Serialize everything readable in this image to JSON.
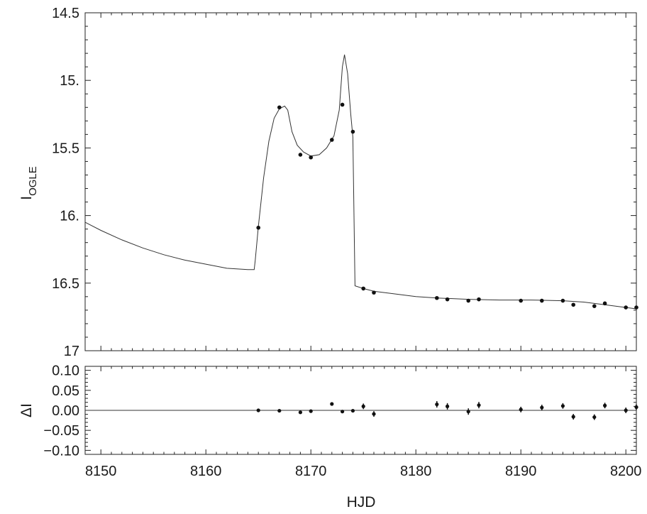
{
  "chart_data": [
    {
      "type": "scatter",
      "panel": "light-curve",
      "title": "",
      "xlabel": "",
      "ylabel": "I",
      "ylabel_sub": "OGLE",
      "xlim": [
        8148.5,
        8201
      ],
      "ylim": [
        17,
        14.5
      ],
      "y_inverted": true,
      "yticks": [
        14.5,
        15,
        15.5,
        16,
        16.5,
        17
      ],
      "ytick_labels": [
        "14.5",
        "15.",
        "15.5",
        "16.",
        "16.5",
        "17"
      ],
      "grid": false,
      "series": [
        {
          "points": [
            {
              "x": 8165.0,
              "y": 16.09
            },
            {
              "x": 8167.0,
              "y": 15.2
            },
            {
              "x": 8169.0,
              "y": 15.55
            },
            {
              "x": 8170.0,
              "y": 15.57
            },
            {
              "x": 8172.0,
              "y": 15.44
            },
            {
              "x": 8173.0,
              "y": 15.18
            },
            {
              "x": 8174.0,
              "y": 15.38
            },
            {
              "x": 8175.0,
              "y": 16.54
            },
            {
              "x": 8176.0,
              "y": 16.57
            },
            {
              "x": 8182.0,
              "y": 16.61
            },
            {
              "x": 8183.0,
              "y": 16.62
            },
            {
              "x": 8185.0,
              "y": 16.63
            },
            {
              "x": 8186.0,
              "y": 16.62
            },
            {
              "x": 8190.0,
              "y": 16.63
            },
            {
              "x": 8192.0,
              "y": 16.63
            },
            {
              "x": 8194.0,
              "y": 16.63
            },
            {
              "x": 8195.0,
              "y": 16.66
            },
            {
              "x": 8197.0,
              "y": 16.67
            },
            {
              "x": 8198.0,
              "y": 16.65
            },
            {
              "x": 8200.0,
              "y": 16.68
            },
            {
              "x": 8201.0,
              "y": 16.68
            }
          ]
        },
        {
          "type": "line",
          "points": [
            {
              "x": 8148.5,
              "y": 16.05
            },
            {
              "x": 8150,
              "y": 16.11
            },
            {
              "x": 8152,
              "y": 16.18
            },
            {
              "x": 8154,
              "y": 16.24
            },
            {
              "x": 8156,
              "y": 16.29
            },
            {
              "x": 8158,
              "y": 16.33
            },
            {
              "x": 8160,
              "y": 16.36
            },
            {
              "x": 8162,
              "y": 16.39
            },
            {
              "x": 8164,
              "y": 16.4
            },
            {
              "x": 8164.6,
              "y": 16.4
            },
            {
              "x": 8164.7,
              "y": 16.33
            },
            {
              "x": 8165.0,
              "y": 16.08
            },
            {
              "x": 8165.5,
              "y": 15.72
            },
            {
              "x": 8166.0,
              "y": 15.45
            },
            {
              "x": 8166.5,
              "y": 15.28
            },
            {
              "x": 8167.0,
              "y": 15.21
            },
            {
              "x": 8167.5,
              "y": 15.19
            },
            {
              "x": 8167.8,
              "y": 15.22
            },
            {
              "x": 8168.2,
              "y": 15.38
            },
            {
              "x": 8168.7,
              "y": 15.48
            },
            {
              "x": 8169.3,
              "y": 15.53
            },
            {
              "x": 8170.0,
              "y": 15.56
            },
            {
              "x": 8170.8,
              "y": 15.55
            },
            {
              "x": 8171.5,
              "y": 15.5
            },
            {
              "x": 8172.2,
              "y": 15.41
            },
            {
              "x": 8172.7,
              "y": 15.22
            },
            {
              "x": 8173.0,
              "y": 14.9
            },
            {
              "x": 8173.2,
              "y": 14.81
            },
            {
              "x": 8173.5,
              "y": 14.95
            },
            {
              "x": 8173.8,
              "y": 15.25
            },
            {
              "x": 8174.0,
              "y": 15.42
            },
            {
              "x": 8174.2,
              "y": 16.52
            },
            {
              "x": 8175,
              "y": 16.54
            },
            {
              "x": 8176,
              "y": 16.56
            },
            {
              "x": 8178,
              "y": 16.58
            },
            {
              "x": 8180,
              "y": 16.6
            },
            {
              "x": 8182,
              "y": 16.61
            },
            {
              "x": 8185,
              "y": 16.62
            },
            {
              "x": 8188,
              "y": 16.625
            },
            {
              "x": 8191,
              "y": 16.625
            },
            {
              "x": 8194,
              "y": 16.63
            },
            {
              "x": 8196,
              "y": 16.64
            },
            {
              "x": 8198,
              "y": 16.66
            },
            {
              "x": 8200,
              "y": 16.68
            },
            {
              "x": 8201,
              "y": 16.69
            }
          ]
        }
      ]
    },
    {
      "type": "scatter",
      "panel": "residuals",
      "title": "",
      "xlabel": "HJD",
      "ylabel": "ΔI",
      "xlim": [
        8148.5,
        8201
      ],
      "ylim": [
        -0.11,
        0.11
      ],
      "xticks": [
        8150,
        8160,
        8170,
        8180,
        8190,
        8200
      ],
      "yticks": [
        0.1,
        0.05,
        0.0,
        -0.05,
        -0.1
      ],
      "ytick_labels": [
        "0.10",
        "0.05",
        "0.00",
        "−0.05",
        "−0.10"
      ],
      "zero_line": true,
      "grid": false,
      "series": [
        {
          "points": [
            {
              "x": 8165.0,
              "y": 0.0,
              "err": 0.003
            },
            {
              "x": 8167.0,
              "y": -0.001,
              "err": 0.003
            },
            {
              "x": 8169.0,
              "y": -0.005,
              "err": 0.003
            },
            {
              "x": 8170.0,
              "y": -0.002,
              "err": 0.003
            },
            {
              "x": 8172.0,
              "y": 0.016,
              "err": 0.003
            },
            {
              "x": 8173.0,
              "y": -0.003,
              "err": 0.003
            },
            {
              "x": 8174.0,
              "y": -0.001,
              "err": 0.003
            },
            {
              "x": 8175.0,
              "y": 0.01,
              "err": 0.007
            },
            {
              "x": 8176.0,
              "y": -0.009,
              "err": 0.007
            },
            {
              "x": 8182.0,
              "y": 0.015,
              "err": 0.008
            },
            {
              "x": 8183.0,
              "y": 0.01,
              "err": 0.008
            },
            {
              "x": 8185.0,
              "y": -0.003,
              "err": 0.008
            },
            {
              "x": 8186.0,
              "y": 0.013,
              "err": 0.008
            },
            {
              "x": 8190.0,
              "y": 0.002,
              "err": 0.007
            },
            {
              "x": 8192.0,
              "y": 0.007,
              "err": 0.007
            },
            {
              "x": 8194.0,
              "y": 0.011,
              "err": 0.007
            },
            {
              "x": 8195.0,
              "y": -0.016,
              "err": 0.007
            },
            {
              "x": 8197.0,
              "y": -0.017,
              "err": 0.007
            },
            {
              "x": 8198.0,
              "y": 0.012,
              "err": 0.007
            },
            {
              "x": 8200.0,
              "y": 0.0,
              "err": 0.007
            },
            {
              "x": 8201.0,
              "y": 0.008,
              "err": 0.007
            }
          ]
        }
      ]
    }
  ]
}
